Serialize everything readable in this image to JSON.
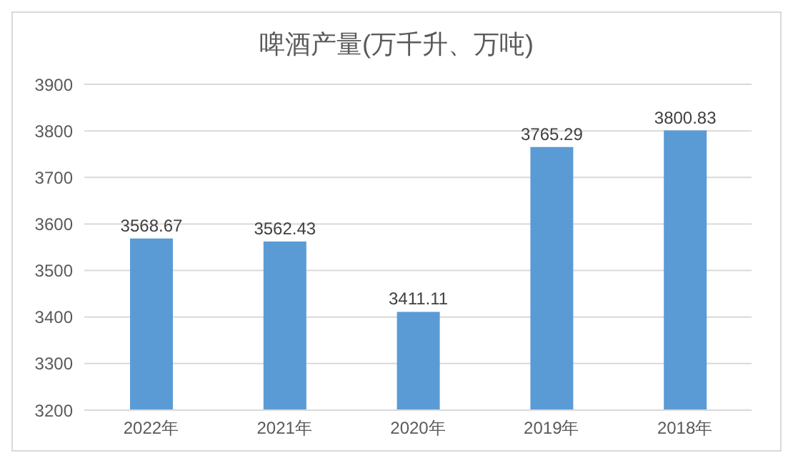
{
  "chart_data": {
    "type": "bar",
    "title": "啤酒产量(万千升、万吨)",
    "categories": [
      "2022年",
      "2021年",
      "2020年",
      "2019年",
      "2018年"
    ],
    "values": [
      3568.67,
      3562.43,
      3411.11,
      3765.29,
      3800.83
    ],
    "color": "#5b9bd5",
    "ylim": [
      3200,
      3900
    ],
    "yticks": [
      3200,
      3300,
      3400,
      3500,
      3600,
      3700,
      3800,
      3900
    ],
    "grid": "y",
    "data_labels": true
  }
}
